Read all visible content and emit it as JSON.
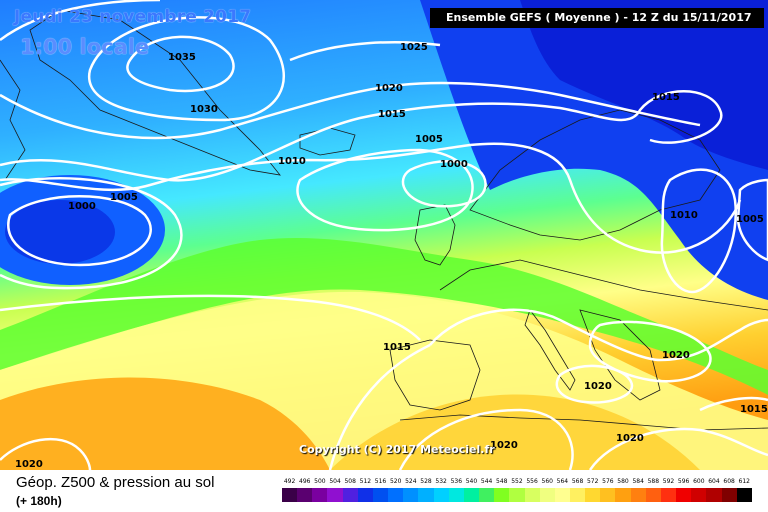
{
  "header": {
    "date_line": "Jeudi 23 novembre 2017",
    "time_line": "1:00 locale",
    "run_info": "Ensemble GEFS  ( Moyenne )  -  12 Z du 15/11/2017"
  },
  "copyright": "Copyright (C) 2017 Meteociel.fr",
  "footer": {
    "title": "Géop. Z500 & pression au sol",
    "subtitle": "(+ 180h)"
  },
  "isobars": [
    {
      "label": "1035"
    },
    {
      "label": "1030"
    },
    {
      "label": "1025"
    },
    {
      "label": "1020"
    },
    {
      "label": "1015"
    },
    {
      "label": "1010"
    },
    {
      "label": "1005"
    },
    {
      "label": "1000"
    },
    {
      "label": "1005"
    },
    {
      "label": "1000"
    },
    {
      "label": "1015"
    },
    {
      "label": "1010"
    },
    {
      "label": "1005"
    },
    {
      "label": "1015"
    },
    {
      "label": "1020"
    },
    {
      "label": "1020"
    },
    {
      "label": "1020"
    },
    {
      "label": "1020"
    },
    {
      "label": "1015"
    },
    {
      "label": "1020"
    }
  ],
  "legend": {
    "labels": [
      "492",
      "496",
      "500",
      "504",
      "508",
      "512",
      "516",
      "520",
      "524",
      "528",
      "532",
      "536",
      "540",
      "544",
      "548",
      "552",
      "556",
      "560",
      "564",
      "568",
      "572",
      "576",
      "580",
      "584",
      "588",
      "592",
      "596",
      "600",
      "604",
      "608",
      "612"
    ],
    "colors": [
      "#3a0048",
      "#5a0070",
      "#7a00a0",
      "#9010d0",
      "#5020e0",
      "#1030e8",
      "#0050f0",
      "#0070ff",
      "#0090ff",
      "#00b0ff",
      "#00d0ff",
      "#00e8e0",
      "#00f0a0",
      "#40f060",
      "#80ff20",
      "#b0ff40",
      "#d8ff60",
      "#f0ff80",
      "#ffff90",
      "#fff060",
      "#ffd830",
      "#ffc020",
      "#ffa010",
      "#ff8010",
      "#ff6010",
      "#ff3010",
      "#f00000",
      "#d00000",
      "#b00000",
      "#800000",
      "#000000"
    ]
  },
  "colors": {
    "deep_blue": "#0f2fe0",
    "blue": "#1560ff",
    "sky": "#2fa0ff",
    "cyan": "#45e6ff",
    "aqua": "#4ff0d0",
    "green": "#5cff30",
    "yellow_green": "#d4ff60",
    "yellow": "#ffff88",
    "gold": "#ffd030",
    "orange": "#ffa010"
  }
}
